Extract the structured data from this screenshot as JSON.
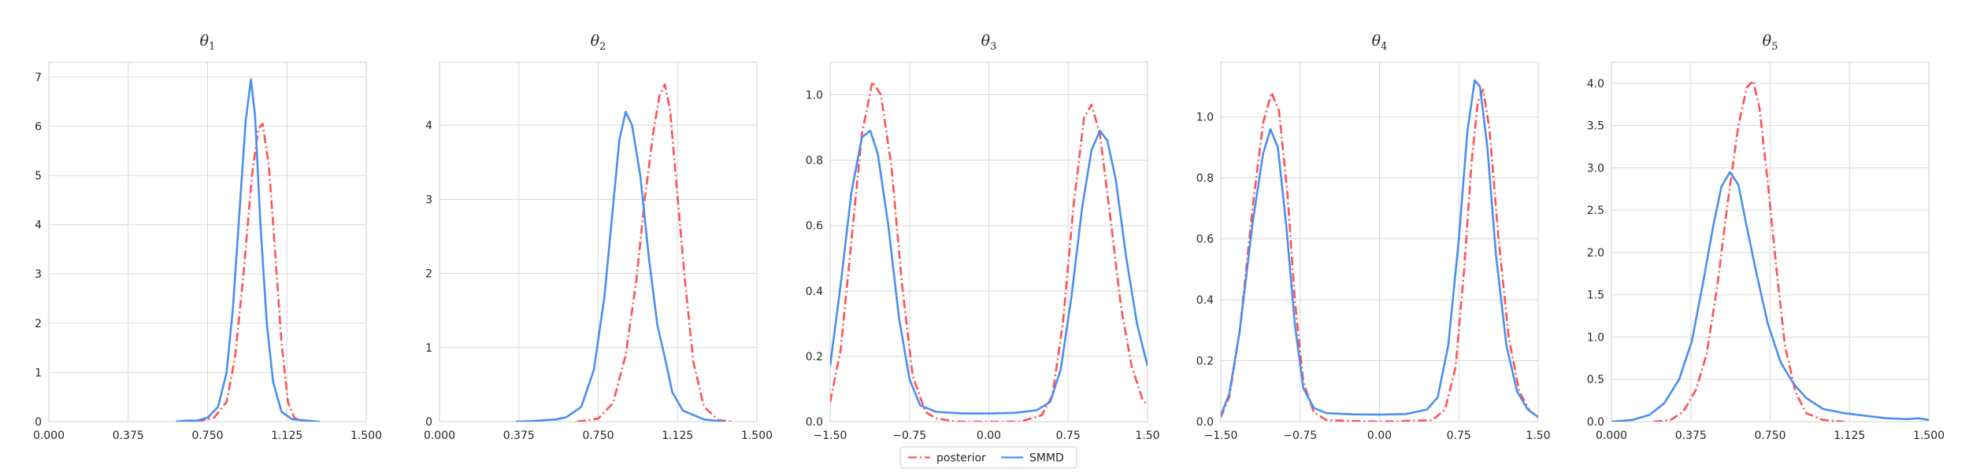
{
  "legend": {
    "entries": [
      {
        "label": "posterior",
        "color": "#ff5252",
        "dash": "dashdot"
      },
      {
        "label": "SMMD",
        "color": "#4a8ff0",
        "dash": "solid"
      }
    ],
    "placement": "bottom-center"
  },
  "chart_data": [
    {
      "type": "line",
      "title": "θ1",
      "title_main": "θ",
      "title_sub": "1",
      "xlim": [
        0,
        1.5
      ],
      "ylim": [
        0,
        7.3
      ],
      "xticks": [
        0,
        0.375,
        0.75,
        1.125,
        1.5
      ],
      "xtick_labels": [
        "0.000",
        "0.375",
        "0.750",
        "1.125",
        "1.500"
      ],
      "yticks": [
        0,
        1,
        2,
        3,
        4,
        5,
        6,
        7
      ],
      "ytick_labels": [
        "0",
        "1",
        "2",
        "3",
        "4",
        "5",
        "6",
        "7"
      ],
      "grid": true,
      "series": [
        {
          "name": "posterior",
          "color": "#ff5252",
          "style": "dashdot",
          "points": [
            [
              0.7,
              0
            ],
            [
              0.78,
              0.08
            ],
            [
              0.84,
              0.4
            ],
            [
              0.88,
              1.3
            ],
            [
              0.92,
              3.0
            ],
            [
              0.96,
              5.0
            ],
            [
              0.99,
              5.95
            ],
            [
              1.01,
              6.05
            ],
            [
              1.04,
              5.2
            ],
            [
              1.07,
              3.4
            ],
            [
              1.1,
              1.6
            ],
            [
              1.13,
              0.4
            ],
            [
              1.16,
              0.08
            ],
            [
              1.2,
              0.0
            ]
          ]
        },
        {
          "name": "SMMD",
          "color": "#4a8ff0",
          "style": "solid",
          "points": [
            [
              0.6,
              0
            ],
            [
              0.65,
              0.02
            ],
            [
              0.7,
              0.02
            ],
            [
              0.75,
              0.08
            ],
            [
              0.8,
              0.3
            ],
            [
              0.84,
              1.0
            ],
            [
              0.87,
              2.3
            ],
            [
              0.9,
              4.2
            ],
            [
              0.93,
              6.1
            ],
            [
              0.955,
              6.95
            ],
            [
              0.975,
              6.2
            ],
            [
              1.0,
              4.0
            ],
            [
              1.03,
              2.0
            ],
            [
              1.06,
              0.8
            ],
            [
              1.1,
              0.2
            ],
            [
              1.15,
              0.05
            ],
            [
              1.25,
              0.01
            ],
            [
              1.28,
              0
            ]
          ]
        }
      ]
    },
    {
      "type": "line",
      "title": "θ2",
      "title_main": "θ",
      "title_sub": "2",
      "xlim": [
        0,
        1.5
      ],
      "ylim": [
        0,
        4.85
      ],
      "xticks": [
        0,
        0.375,
        0.75,
        1.125,
        1.5
      ],
      "xtick_labels": [
        "0.000",
        "0.375",
        "0.750",
        "1.125",
        "1.500"
      ],
      "yticks": [
        0,
        1,
        2,
        3,
        4
      ],
      "ytick_labels": [
        "0",
        "1",
        "2",
        "3",
        "4"
      ],
      "grid": true,
      "series": [
        {
          "name": "posterior",
          "color": "#ff5252",
          "style": "dashdot",
          "points": [
            [
              0.65,
              0
            ],
            [
              0.75,
              0.04
            ],
            [
              0.82,
              0.25
            ],
            [
              0.88,
              0.9
            ],
            [
              0.93,
              1.9
            ],
            [
              0.97,
              3.0
            ],
            [
              1.01,
              3.9
            ],
            [
              1.04,
              4.4
            ],
            [
              1.065,
              4.55
            ],
            [
              1.09,
              4.2
            ],
            [
              1.12,
              3.2
            ],
            [
              1.16,
              1.9
            ],
            [
              1.2,
              0.8
            ],
            [
              1.25,
              0.2
            ],
            [
              1.32,
              0.02
            ],
            [
              1.38,
              0
            ]
          ]
        },
        {
          "name": "SMMD",
          "color": "#4a8ff0",
          "style": "solid",
          "points": [
            [
              0.36,
              0
            ],
            [
              0.45,
              0.01
            ],
            [
              0.55,
              0.03
            ],
            [
              0.6,
              0.06
            ],
            [
              0.67,
              0.2
            ],
            [
              0.73,
              0.7
            ],
            [
              0.78,
              1.7
            ],
            [
              0.82,
              2.9
            ],
            [
              0.85,
              3.8
            ],
            [
              0.88,
              4.18
            ],
            [
              0.91,
              4.0
            ],
            [
              0.95,
              3.3
            ],
            [
              0.99,
              2.2
            ],
            [
              1.03,
              1.3
            ],
            [
              1.07,
              0.8
            ],
            [
              1.1,
              0.4
            ],
            [
              1.15,
              0.15
            ],
            [
              1.25,
              0.03
            ],
            [
              1.35,
              0
            ]
          ]
        }
      ]
    },
    {
      "type": "line",
      "title": "θ3",
      "title_main": "θ",
      "title_sub": "3",
      "xlim": [
        -1.5,
        1.5
      ],
      "ylim": [
        0,
        1.1
      ],
      "xticks": [
        -1.5,
        -0.75,
        0,
        0.75,
        1.5
      ],
      "xtick_labels": [
        "−1.50",
        "−0.75",
        "0.00",
        "0.75",
        "1.50"
      ],
      "yticks": [
        0,
        0.2,
        0.4,
        0.6,
        0.8,
        1.0
      ],
      "ytick_labels": [
        "0.0",
        "0.2",
        "0.4",
        "0.6",
        "0.8",
        "1.0"
      ],
      "grid": true,
      "series": [
        {
          "name": "posterior",
          "color": "#ff5252",
          "style": "dashdot",
          "points": [
            [
              -1.5,
              0.06
            ],
            [
              -1.4,
              0.22
            ],
            [
              -1.3,
              0.55
            ],
            [
              -1.2,
              0.88
            ],
            [
              -1.1,
              1.04
            ],
            [
              -1.02,
              1.0
            ],
            [
              -0.92,
              0.78
            ],
            [
              -0.82,
              0.42
            ],
            [
              -0.72,
              0.14
            ],
            [
              -0.6,
              0.03
            ],
            [
              -0.5,
              0.01
            ],
            [
              -0.3,
              0.0
            ],
            [
              0.0,
              0.0
            ],
            [
              0.3,
              0.0
            ],
            [
              0.5,
              0.02
            ],
            [
              0.6,
              0.08
            ],
            [
              0.7,
              0.3
            ],
            [
              0.8,
              0.66
            ],
            [
              0.9,
              0.93
            ],
            [
              0.97,
              0.97
            ],
            [
              1.05,
              0.88
            ],
            [
              1.15,
              0.62
            ],
            [
              1.25,
              0.35
            ],
            [
              1.35,
              0.17
            ],
            [
              1.45,
              0.07
            ],
            [
              1.5,
              0.05
            ]
          ]
        },
        {
          "name": "SMMD",
          "color": "#4a8ff0",
          "style": "solid",
          "points": [
            [
              -1.5,
              0.17
            ],
            [
              -1.4,
              0.42
            ],
            [
              -1.3,
              0.7
            ],
            [
              -1.2,
              0.87
            ],
            [
              -1.12,
              0.89
            ],
            [
              -1.05,
              0.82
            ],
            [
              -0.95,
              0.6
            ],
            [
              -0.85,
              0.32
            ],
            [
              -0.75,
              0.13
            ],
            [
              -0.65,
              0.05
            ],
            [
              -0.5,
              0.03
            ],
            [
              -0.25,
              0.025
            ],
            [
              0.0,
              0.025
            ],
            [
              0.25,
              0.027
            ],
            [
              0.45,
              0.035
            ],
            [
              0.58,
              0.06
            ],
            [
              0.68,
              0.16
            ],
            [
              0.78,
              0.38
            ],
            [
              0.88,
              0.65
            ],
            [
              0.97,
              0.83
            ],
            [
              1.05,
              0.89
            ],
            [
              1.12,
              0.86
            ],
            [
              1.2,
              0.74
            ],
            [
              1.3,
              0.5
            ],
            [
              1.4,
              0.3
            ],
            [
              1.5,
              0.17
            ]
          ]
        }
      ]
    },
    {
      "type": "line",
      "title": "θ4",
      "title_main": "θ",
      "title_sub": "4",
      "xlim": [
        -1.5,
        1.5
      ],
      "ylim": [
        0,
        1.18
      ],
      "xticks": [
        -1.5,
        -0.75,
        0,
        0.75,
        1.5
      ],
      "xtick_labels": [
        "−1.50",
        "−0.75",
        "0.00",
        "0.75",
        "1.50"
      ],
      "yticks": [
        0,
        0.2,
        0.4,
        0.6,
        0.8,
        1.0
      ],
      "ytick_labels": [
        "0.0",
        "0.2",
        "0.4",
        "0.6",
        "0.8",
        "1.0"
      ],
      "grid": true,
      "series": [
        {
          "name": "posterior",
          "color": "#ff5252",
          "style": "dashdot",
          "points": [
            [
              -1.5,
              0.015
            ],
            [
              -1.42,
              0.08
            ],
            [
              -1.32,
              0.3
            ],
            [
              -1.2,
              0.7
            ],
            [
              -1.1,
              0.98
            ],
            [
              -1.02,
              1.08
            ],
            [
              -0.95,
              1.02
            ],
            [
              -0.87,
              0.75
            ],
            [
              -0.8,
              0.4
            ],
            [
              -0.72,
              0.13
            ],
            [
              -0.62,
              0.03
            ],
            [
              -0.5,
              0.005
            ],
            [
              0,
              0.0
            ],
            [
              0.5,
              0.005
            ],
            [
              0.62,
              0.04
            ],
            [
              0.72,
              0.18
            ],
            [
              0.8,
              0.5
            ],
            [
              0.87,
              0.85
            ],
            [
              0.93,
              1.05
            ],
            [
              0.98,
              1.09
            ],
            [
              1.04,
              0.96
            ],
            [
              1.12,
              0.62
            ],
            [
              1.22,
              0.28
            ],
            [
              1.32,
              0.1
            ],
            [
              1.42,
              0.035
            ],
            [
              1.5,
              0.015
            ]
          ]
        },
        {
          "name": "SMMD",
          "color": "#4a8ff0",
          "style": "solid",
          "points": [
            [
              -1.5,
              0.02
            ],
            [
              -1.42,
              0.09
            ],
            [
              -1.32,
              0.3
            ],
            [
              -1.2,
              0.65
            ],
            [
              -1.1,
              0.88
            ],
            [
              -1.03,
              0.96
            ],
            [
              -0.96,
              0.9
            ],
            [
              -0.88,
              0.64
            ],
            [
              -0.8,
              0.32
            ],
            [
              -0.72,
              0.11
            ],
            [
              -0.62,
              0.045
            ],
            [
              -0.5,
              0.028
            ],
            [
              -0.25,
              0.024
            ],
            [
              0,
              0.023
            ],
            [
              0.25,
              0.025
            ],
            [
              0.45,
              0.04
            ],
            [
              0.55,
              0.08
            ],
            [
              0.65,
              0.25
            ],
            [
              0.75,
              0.6
            ],
            [
              0.83,
              0.95
            ],
            [
              0.9,
              1.12
            ],
            [
              0.95,
              1.1
            ],
            [
              1.02,
              0.9
            ],
            [
              1.1,
              0.55
            ],
            [
              1.2,
              0.25
            ],
            [
              1.3,
              0.1
            ],
            [
              1.4,
              0.04
            ],
            [
              1.5,
              0.015
            ]
          ]
        }
      ]
    },
    {
      "type": "line",
      "title": "θ5",
      "title_main": "θ",
      "title_sub": "5",
      "xlim": [
        0,
        1.5
      ],
      "ylim": [
        0,
        4.25
      ],
      "xticks": [
        0,
        0.375,
        0.75,
        1.125,
        1.5
      ],
      "xtick_labels": [
        "0.000",
        "0.375",
        "0.750",
        "1.125",
        "1.500"
      ],
      "yticks": [
        0,
        0.5,
        1.0,
        1.5,
        2.0,
        2.5,
        3.0,
        3.5,
        4.0
      ],
      "ytick_labels": [
        "0.0",
        "0.5",
        "1.0",
        "1.5",
        "2.0",
        "2.5",
        "3.0",
        "3.5",
        "4.0"
      ],
      "grid": true,
      "series": [
        {
          "name": "posterior",
          "color": "#ff5252",
          "style": "dashdot",
          "points": [
            [
              0.2,
              0
            ],
            [
              0.28,
              0.02
            ],
            [
              0.34,
              0.12
            ],
            [
              0.4,
              0.38
            ],
            [
              0.45,
              0.8
            ],
            [
              0.5,
              1.6
            ],
            [
              0.55,
              2.6
            ],
            [
              0.6,
              3.5
            ],
            [
              0.64,
              3.95
            ],
            [
              0.67,
              4.03
            ],
            [
              0.7,
              3.7
            ],
            [
              0.74,
              2.8
            ],
            [
              0.78,
              1.8
            ],
            [
              0.82,
              0.9
            ],
            [
              0.87,
              0.35
            ],
            [
              0.92,
              0.1
            ],
            [
              1.0,
              0.02
            ],
            [
              1.1,
              0
            ]
          ]
        },
        {
          "name": "SMMD",
          "color": "#4a8ff0",
          "style": "solid",
          "points": [
            [
              0,
              0
            ],
            [
              0.1,
              0.02
            ],
            [
              0.18,
              0.08
            ],
            [
              0.25,
              0.22
            ],
            [
              0.32,
              0.5
            ],
            [
              0.38,
              0.95
            ],
            [
              0.43,
              1.6
            ],
            [
              0.48,
              2.3
            ],
            [
              0.52,
              2.78
            ],
            [
              0.56,
              2.95
            ],
            [
              0.6,
              2.8
            ],
            [
              0.64,
              2.3
            ],
            [
              0.69,
              1.7
            ],
            [
              0.74,
              1.15
            ],
            [
              0.8,
              0.7
            ],
            [
              0.86,
              0.45
            ],
            [
              0.92,
              0.28
            ],
            [
              1.0,
              0.15
            ],
            [
              1.1,
              0.1
            ],
            [
              1.2,
              0.07
            ],
            [
              1.3,
              0.04
            ],
            [
              1.4,
              0.03
            ],
            [
              1.45,
              0.04
            ],
            [
              1.5,
              0.02
            ]
          ]
        }
      ]
    }
  ]
}
